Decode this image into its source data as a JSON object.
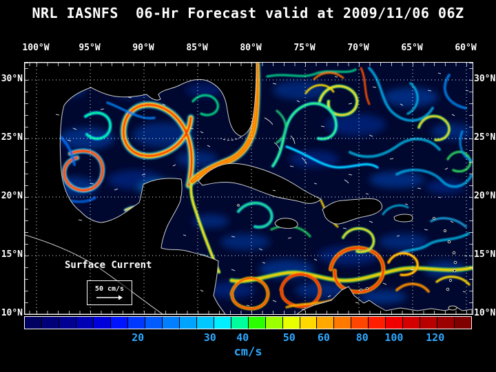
{
  "title": "NRL IASNFS  06-Hr Forecast valid at 2009/11/06 06Z",
  "axes": {
    "top": [
      "100°W",
      "95°W",
      "90°W",
      "85°W",
      "80°W",
      "75°W",
      "70°W",
      "65°W",
      "60°W"
    ],
    "left": [
      "30°N",
      "25°N",
      "20°N",
      "15°N",
      "10°N"
    ],
    "right": [
      "30°N",
      "25°N",
      "20°N",
      "15°N",
      "10°N"
    ]
  },
  "map": {
    "annotation": "Surface Current",
    "scale_label": "50 cm/s"
  },
  "colorbar": {
    "unit": "cm/s",
    "tick_labels": [
      "20",
      "30",
      "40",
      "50",
      "60",
      "80",
      "100",
      "120"
    ],
    "label_color": "#2fa8ff",
    "colors": [
      "#000060",
      "#000078",
      "#000092",
      "#0000b4",
      "#0000da",
      "#0014ff",
      "#0038ff",
      "#005cff",
      "#0080ff",
      "#00a4ff",
      "#00c8ff",
      "#00eeff",
      "#00ff9c",
      "#2aff00",
      "#9cff00",
      "#e8ff00",
      "#ffd800",
      "#ffa800",
      "#ff7800",
      "#ff4600",
      "#ff1e00",
      "#f00000",
      "#d40000",
      "#b80000",
      "#9c0000",
      "#800000"
    ]
  },
  "chart_data": {
    "type": "heatmap",
    "title": "NRL IASNFS 06-Hr Forecast valid at 2009/11/06 06Z",
    "variable": "Surface Current",
    "units": "cm/s",
    "x_ticks": [
      "100°W",
      "95°W",
      "90°W",
      "85°W",
      "80°W",
      "75°W",
      "70°W",
      "65°W",
      "60°W"
    ],
    "y_ticks": [
      "30°N",
      "25°N",
      "20°N",
      "15°N",
      "10°N"
    ],
    "colorbar_ticks": [
      20,
      30,
      40,
      50,
      60,
      80,
      100,
      120
    ],
    "reference_vector_cm_s": 50
  }
}
